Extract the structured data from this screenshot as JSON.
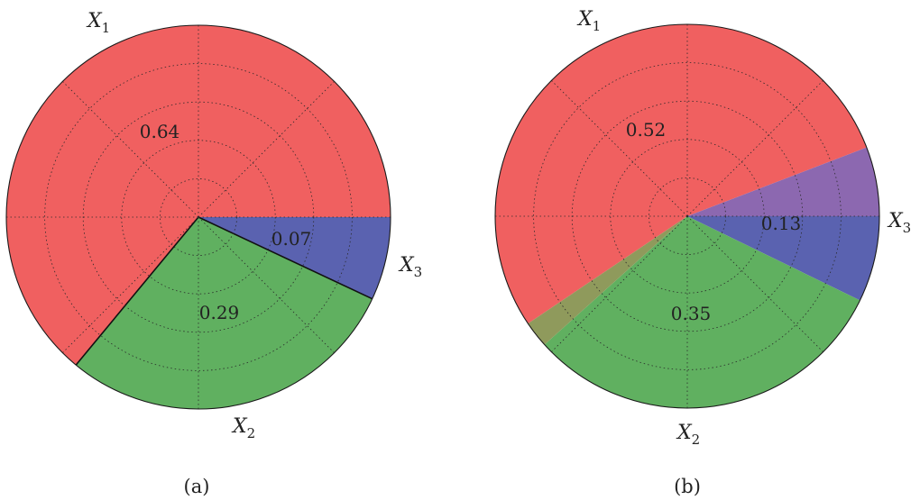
{
  "chart_data": [
    {
      "type": "pie",
      "caption": "(a)",
      "slices": [
        {
          "label": "X",
          "label_sub": "1",
          "value": 0.64,
          "value_text": "0.64",
          "color": "#f06060"
        },
        {
          "label": "X",
          "label_sub": "2",
          "value": 0.29,
          "value_text": "0.29",
          "color": "#60b060"
        },
        {
          "label": "X",
          "label_sub": "3",
          "value": 0.07,
          "value_text": "0.07",
          "color": "#5a62b0"
        }
      ],
      "start_angle_deg": 0,
      "direction": "counterclockwise",
      "grid": true
    },
    {
      "type": "pie",
      "caption": "(b)",
      "slices": [
        {
          "label": "X",
          "label_sub": "1",
          "value": 0.52,
          "value_text": "0.52",
          "color": "#f06060"
        },
        {
          "label": "X",
          "label_sub": "2",
          "value": 0.35,
          "value_text": "0.35",
          "color": "#60b060"
        },
        {
          "label": "X",
          "label_sub": "3",
          "value": 0.13,
          "value_text": "0.13",
          "color": "#5a62b0"
        }
      ],
      "overlaps": [
        {
          "between": [
            "X1",
            "X3"
          ],
          "color": "#8c68b0"
        },
        {
          "between": [
            "X1",
            "X2"
          ],
          "color": "#8f9a5c"
        }
      ],
      "grid": true
    }
  ]
}
